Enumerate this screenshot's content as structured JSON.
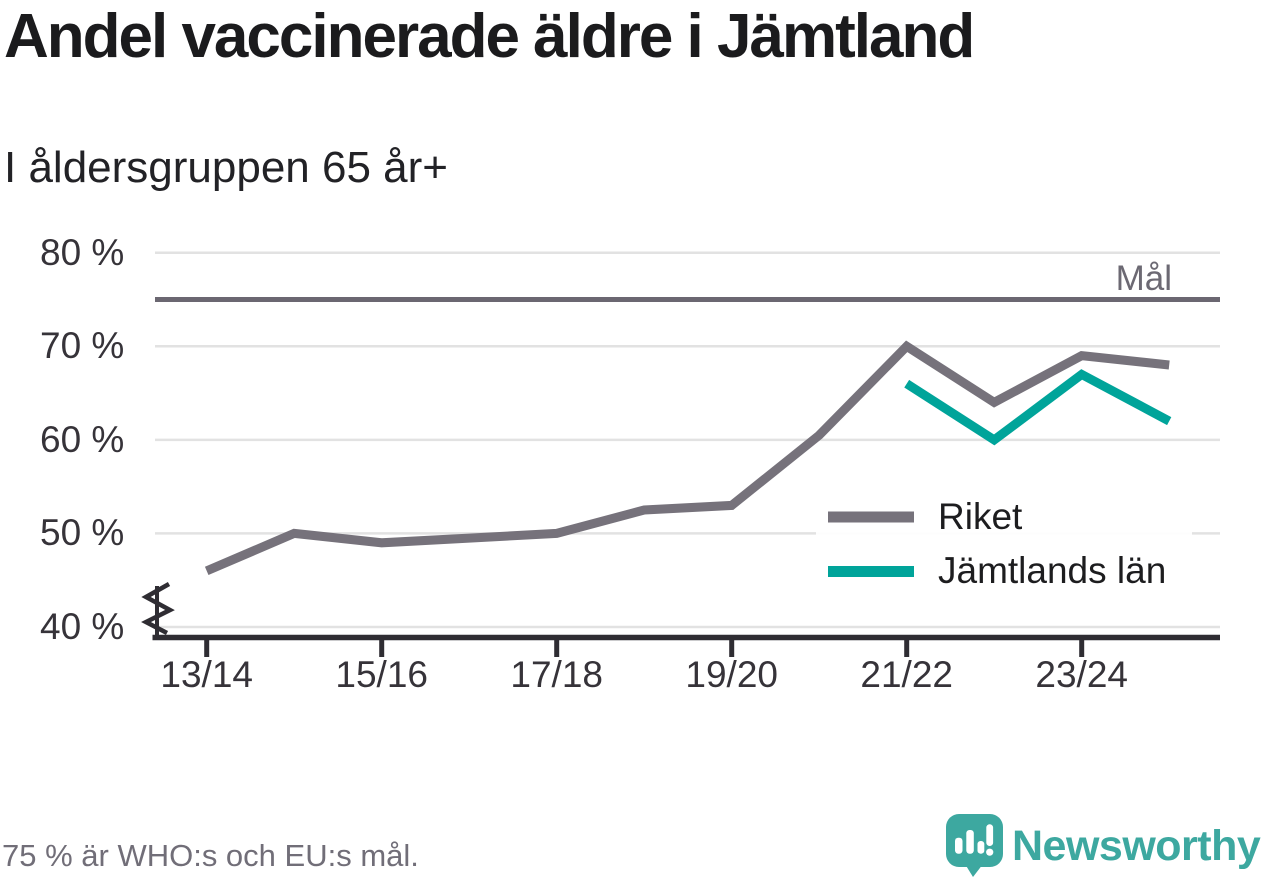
{
  "title": "Andel vaccinerade äldre i Jämtland",
  "subtitle": "I åldersgruppen 65 år+",
  "footer": {
    "note": "75 % är WHO:s och EU:s mål.",
    "brand_name": "Newsworthy",
    "brand_color": "#3da8a0",
    "logo_icon": "speech-bubble-bar-chart-exclamation-icon"
  },
  "chart_data": {
    "type": "line",
    "x": [
      "13/14",
      "14/15",
      "15/16",
      "16/17",
      "17/18",
      "18/19",
      "19/20",
      "20/21",
      "21/22",
      "22/23",
      "23/24",
      "24/25"
    ],
    "x_tick_labels": [
      "13/14",
      "15/16",
      "17/18",
      "19/20",
      "21/22",
      "23/24"
    ],
    "yticks": [
      40,
      50,
      60,
      70,
      80
    ],
    "ytick_labels": [
      "40 %",
      "50 %",
      "60 %",
      "70 %",
      "80 %"
    ],
    "ylim": [
      40,
      80
    ],
    "unit": "%",
    "grid": "horizontal",
    "axis_break_below_ymin": true,
    "legend_position": "inside-right",
    "goal_line": {
      "value": 75,
      "label": "Mål",
      "color": "#6b6771"
    },
    "series": [
      {
        "name": "Riket",
        "color": "#76727b",
        "values": [
          46,
          50,
          49,
          49.5,
          50,
          52.5,
          53,
          60.5,
          70,
          64,
          69,
          68
        ]
      },
      {
        "name": "Jämtlands län",
        "color": "#00a49a",
        "values": [
          null,
          null,
          null,
          null,
          null,
          null,
          null,
          null,
          66,
          60,
          67,
          62
        ]
      }
    ]
  }
}
